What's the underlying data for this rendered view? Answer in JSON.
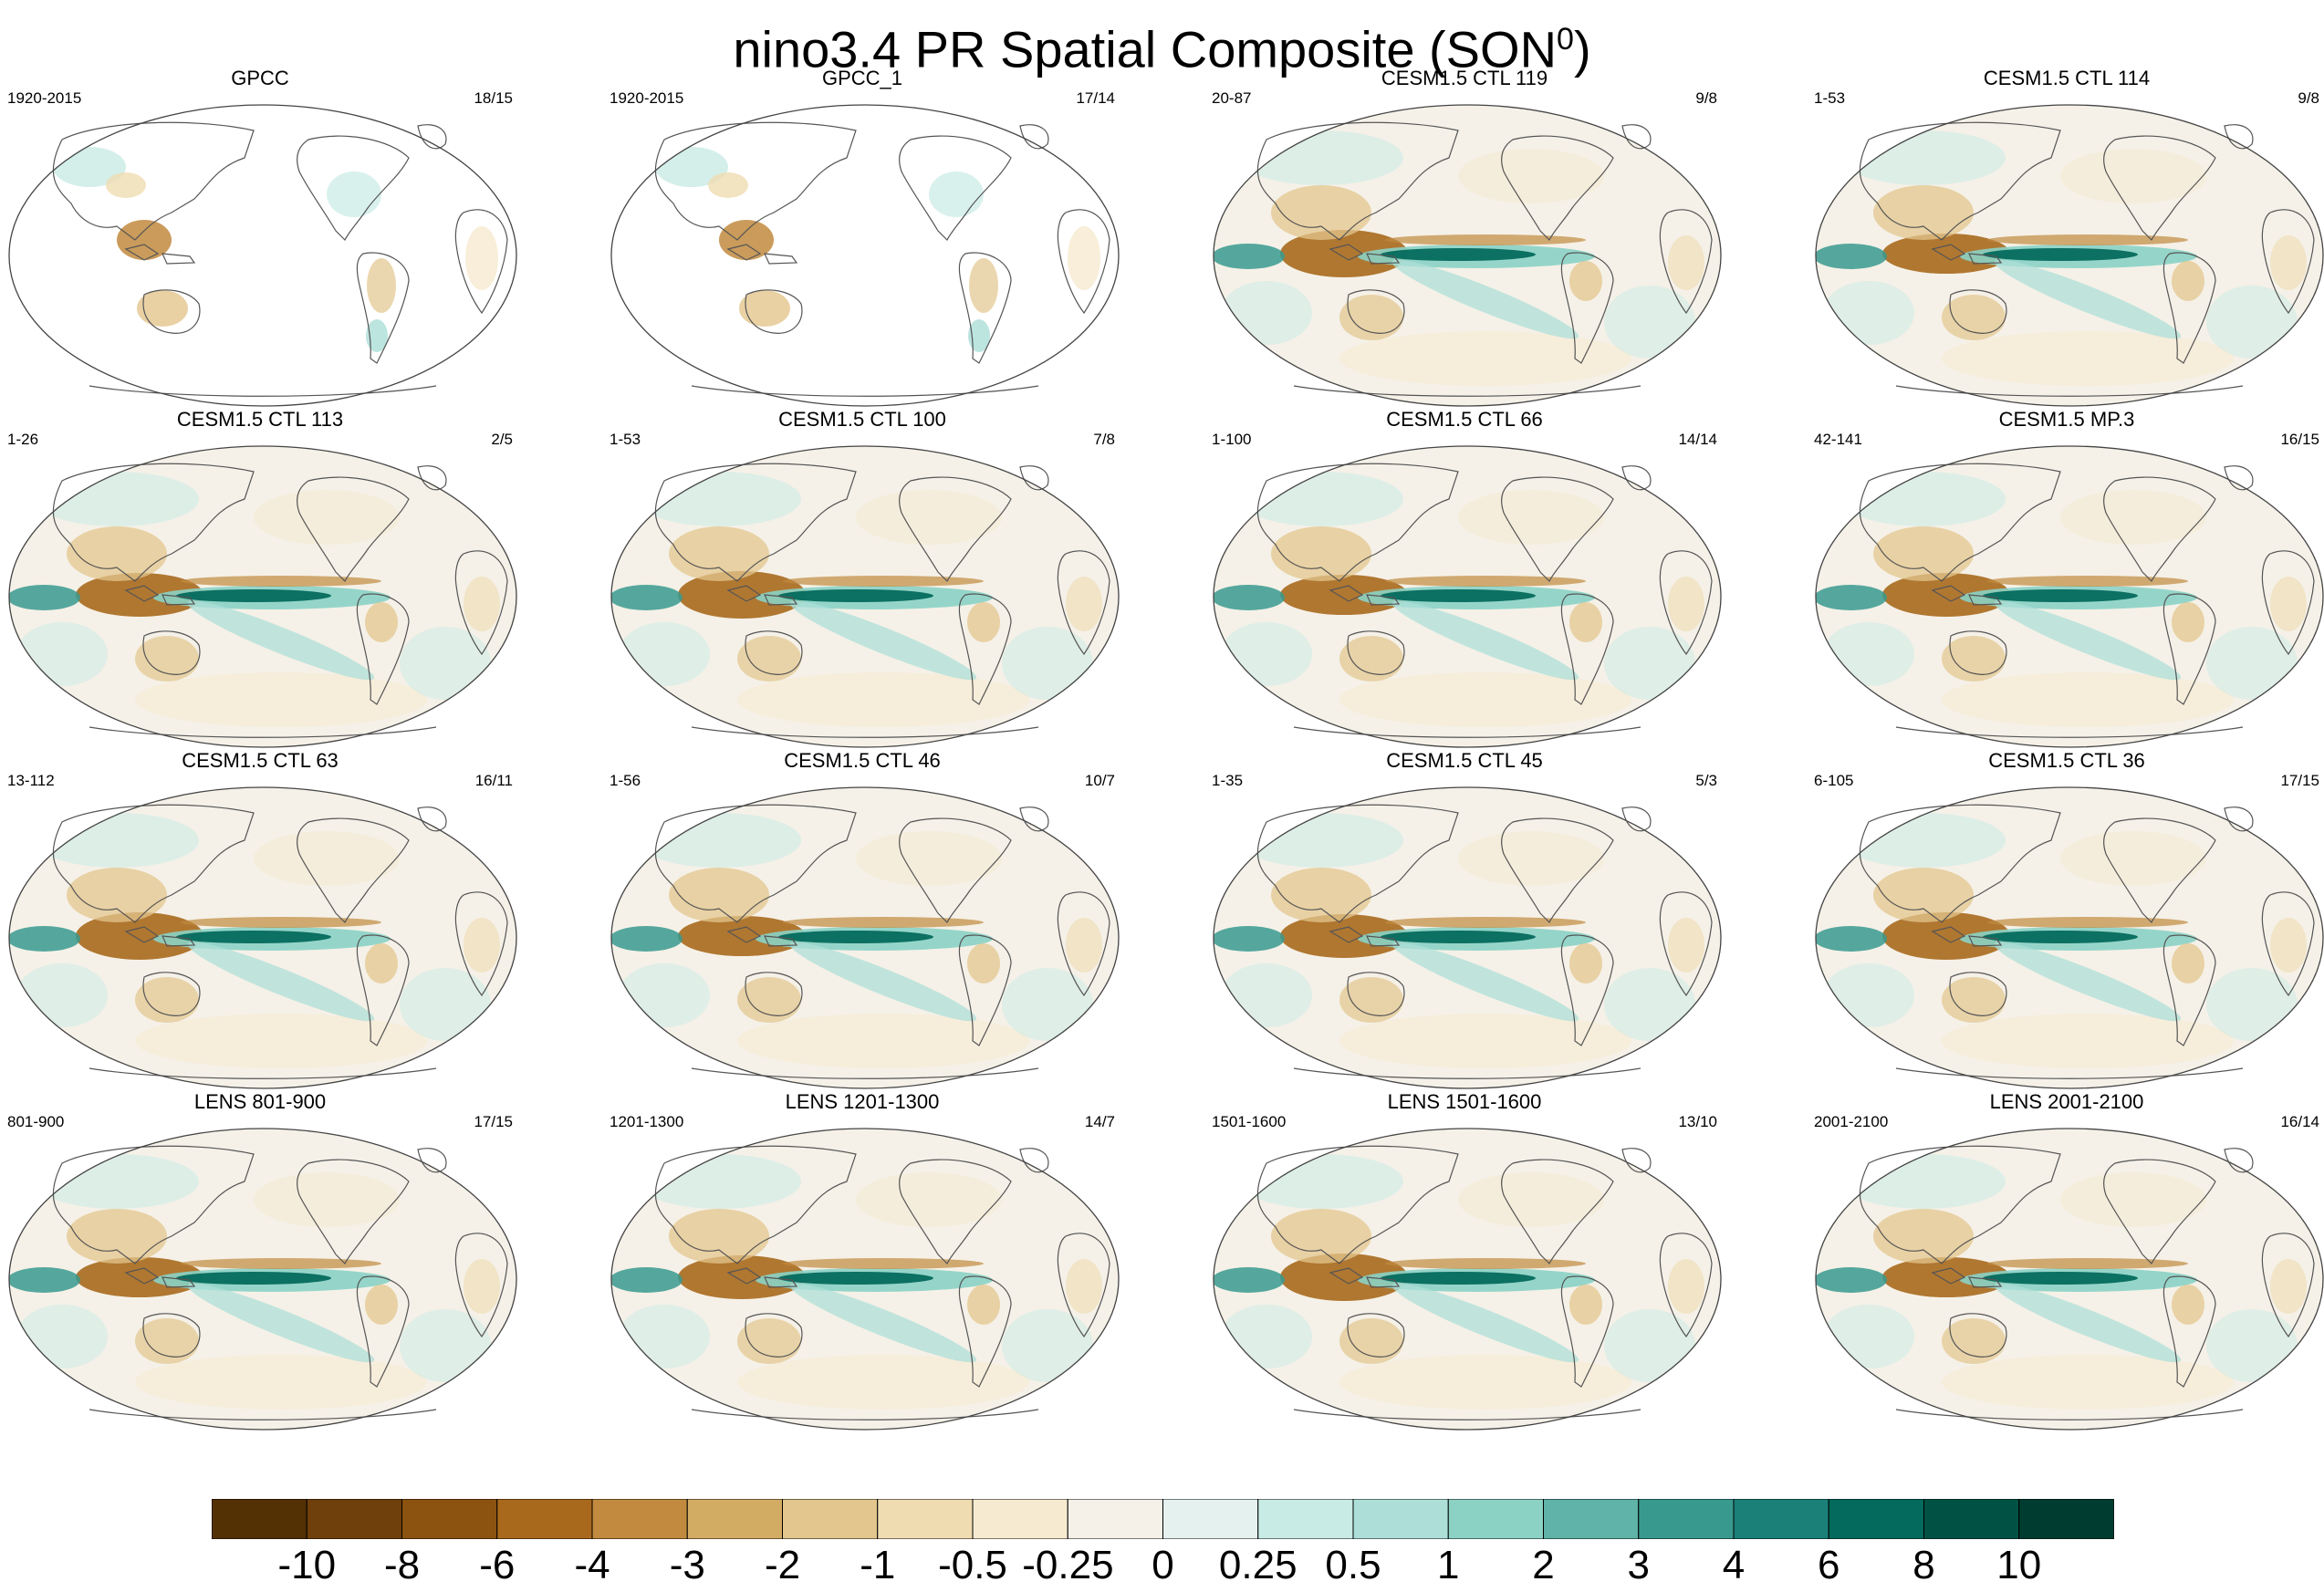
{
  "figure": {
    "title_main": "nino3.4 PR Spatial Composite (SON",
    "title_sup": "0",
    "title_close": ")"
  },
  "panels": [
    {
      "title": "GPCC",
      "left": "1920-2015",
      "right": "18/15",
      "type": "obs"
    },
    {
      "title": "GPCC_1",
      "left": "1920-2015",
      "right": "17/14",
      "type": "obs"
    },
    {
      "title": "CESM1.5 CTL 119",
      "left": "20-87",
      "right": "9/8",
      "type": "model"
    },
    {
      "title": "CESM1.5 CTL 114",
      "left": "1-53",
      "right": "9/8",
      "type": "model"
    },
    {
      "title": "CESM1.5 CTL 113",
      "left": "1-26",
      "right": "2/5",
      "type": "model"
    },
    {
      "title": "CESM1.5 CTL 100",
      "left": "1-53",
      "right": "7/8",
      "type": "model"
    },
    {
      "title": "CESM1.5 CTL 66",
      "left": "1-100",
      "right": "14/14",
      "type": "model"
    },
    {
      "title": "CESM1.5 MP.3",
      "left": "42-141",
      "right": "16/15",
      "type": "model"
    },
    {
      "title": "CESM1.5 CTL 63",
      "left": "13-112",
      "right": "16/11",
      "type": "model"
    },
    {
      "title": "CESM1.5 CTL 46",
      "left": "1-56",
      "right": "10/7",
      "type": "model"
    },
    {
      "title": "CESM1.5 CTL 45",
      "left": "1-35",
      "right": "5/3",
      "type": "model"
    },
    {
      "title": "CESM1.5 CTL 36",
      "left": "6-105",
      "right": "17/15",
      "type": "model"
    },
    {
      "title": "LENS 801-900",
      "left": "801-900",
      "right": "17/15",
      "type": "model"
    },
    {
      "title": "LENS 1201-1300",
      "left": "1201-1300",
      "right": "14/7",
      "type": "model"
    },
    {
      "title": "LENS 1501-1600",
      "left": "1501-1600",
      "right": "13/10",
      "type": "model"
    },
    {
      "title": "LENS 2001-2100",
      "left": "2001-2100",
      "right": "16/14",
      "type": "model"
    }
  ],
  "colorbar": {
    "labels": [
      "-10",
      "-8",
      "-6",
      "-4",
      "-3",
      "-2",
      "-1",
      "-0.5",
      "-0.25",
      "0",
      "0.25",
      "0.5",
      "1",
      "2",
      "3",
      "4",
      "6",
      "8",
      "10"
    ],
    "colors": [
      "#543005",
      "#6f400b",
      "#8c5210",
      "#a9691d",
      "#c18a3e",
      "#d3ac64",
      "#e3c68d",
      "#efdcb1",
      "#f6ead0",
      "#f5f1e8",
      "#e4f1ef",
      "#c9ebe5",
      "#addfd8",
      "#8bd2c5",
      "#5fb3a8",
      "#389a8f",
      "#1b8078",
      "#046a5d",
      "#015245",
      "#003c30"
    ]
  }
}
